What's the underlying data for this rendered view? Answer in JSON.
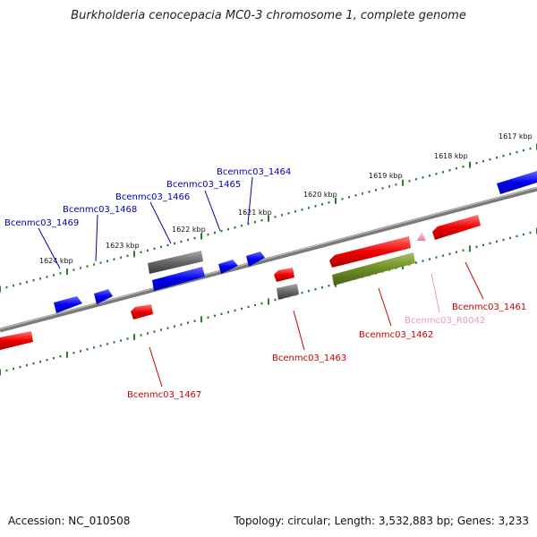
{
  "title": "Burkholderia cenocepacia MC0-3 chromosome 1, complete genome",
  "footer": {
    "accession": "Accession: NC_010508",
    "summary": "Topology: circular; Length: 3,532,883 bp; Genes: 3,233"
  },
  "colors": {
    "backbone": "#7a7a7a",
    "tick": "#2e7d2e",
    "tick_label": "#111111",
    "forward_label": "#0000aa",
    "reverse_label": "#cc0000",
    "rna_label": "#ee99bb"
  },
  "kbp_labels": [
    "1617 kbp",
    "1618 kbp",
    "1619 kbp",
    "1620 kbp",
    "1621 kbp",
    "1622 kbp",
    "1623 kbp",
    "1624 kbp"
  ],
  "gene_labels": {
    "forward": [
      "Bcenmc03_1464",
      "Bcenmc03_1465",
      "Bcenmc03_1466",
      "Bcenmc03_1468",
      "Bcenmc03_1469"
    ],
    "reverse": [
      "Bcenmc03_1461",
      "Bcenmc03_R0042",
      "Bcenmc03_1462",
      "Bcenmc03_1463",
      "Bcenmc03_1467"
    ]
  }
}
